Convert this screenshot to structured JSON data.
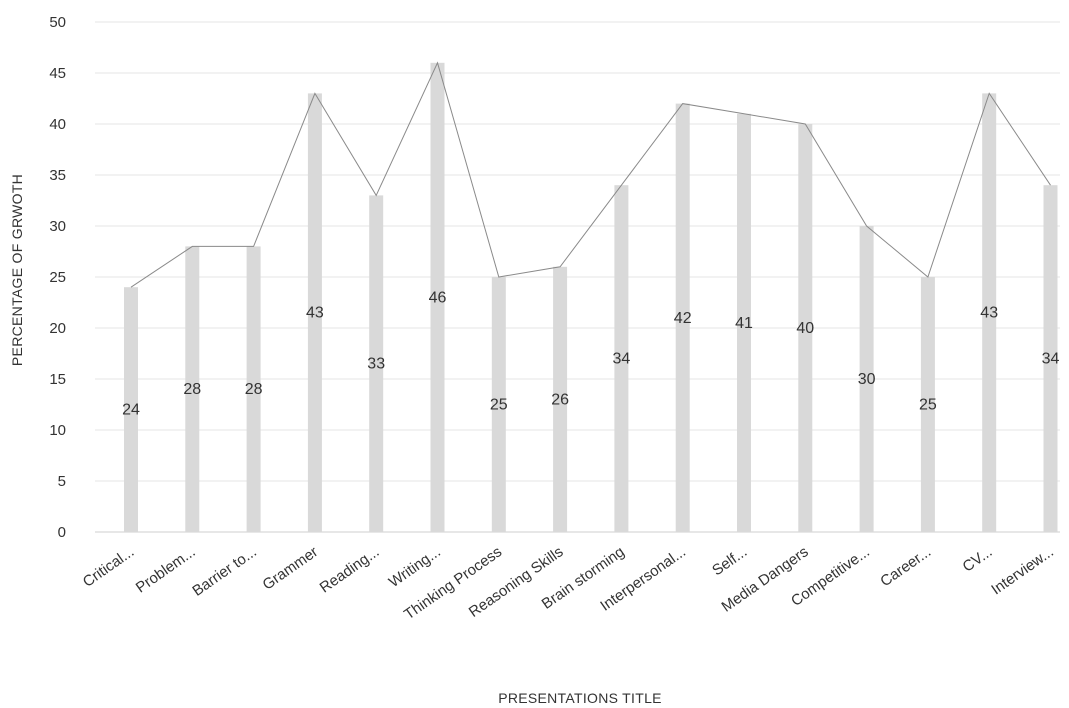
{
  "chart_data": {
    "type": "bar",
    "title": "",
    "xlabel": "PRESENTATIONS TITLE",
    "ylabel": "PERCENTAGE OF GRWOTH",
    "ylim": [
      0,
      50
    ],
    "yticks": [
      0,
      5,
      10,
      15,
      20,
      25,
      30,
      35,
      40,
      45,
      50
    ],
    "grid": true,
    "legend": "none",
    "overlay_line": true,
    "categories": [
      "Critical...",
      "Problem...",
      "Barrier to...",
      "Grammer",
      "Reading...",
      "Writing...",
      "Thinking Process",
      "Reasoning Skills",
      "Brain storming",
      "Interpersonal...",
      "Self...",
      "Media Dangers",
      "Competitive...",
      "Career...",
      "CV...",
      "Interview..."
    ],
    "values": [
      24,
      28,
      28,
      43,
      33,
      46,
      25,
      26,
      34,
      42,
      41,
      40,
      30,
      25,
      43,
      34
    ],
    "colors": {
      "bar": "#d9d9d9",
      "line": "#8a8a8a",
      "grid": "#e4e4e4",
      "text": "#333333"
    }
  }
}
